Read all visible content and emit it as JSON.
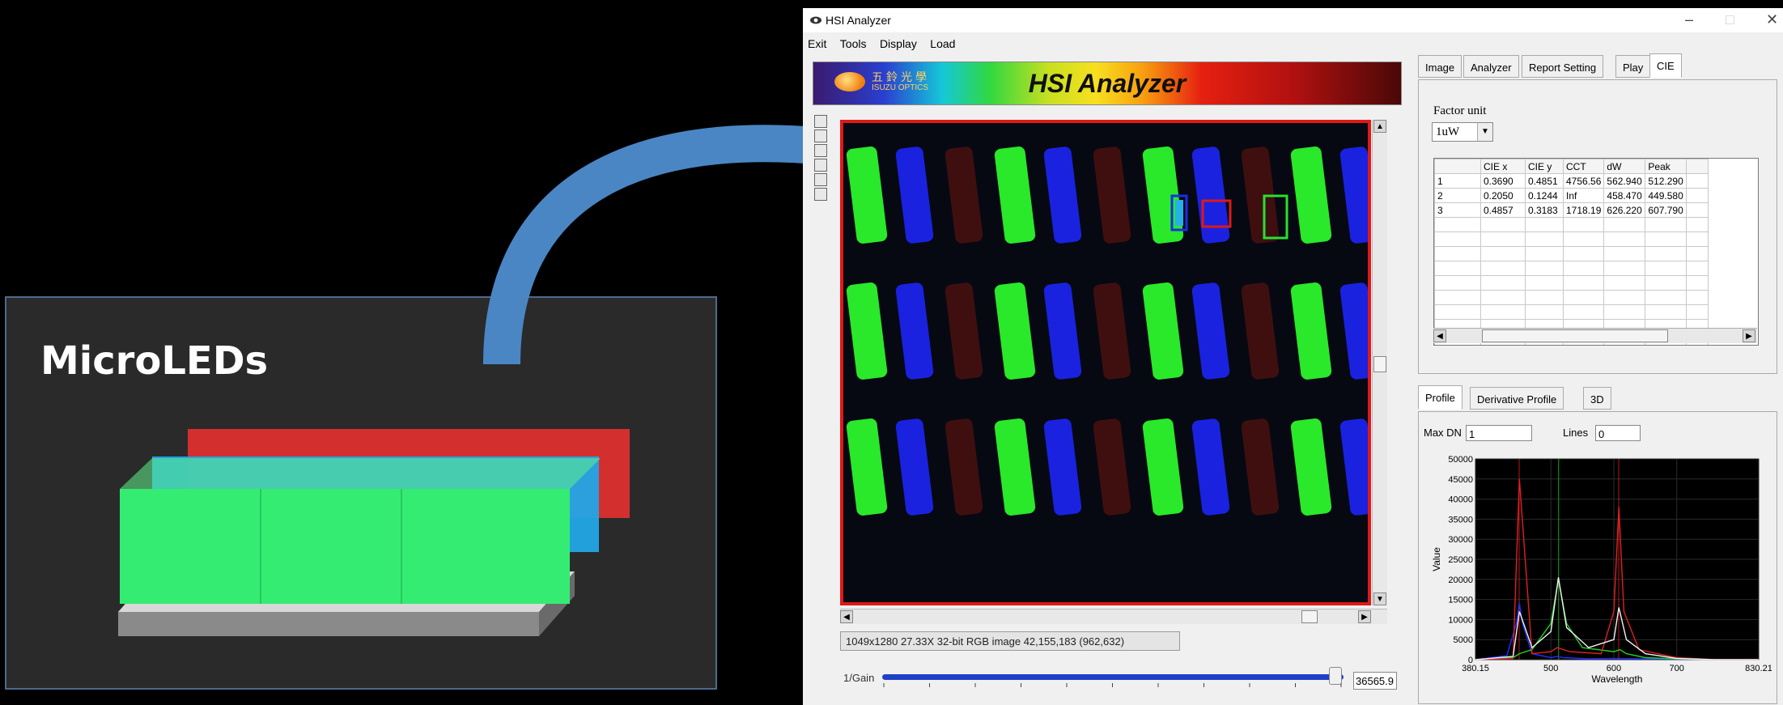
{
  "illustration": {
    "title": "MicroLEDs"
  },
  "window": {
    "title": "HSI Analyzer"
  },
  "menu": [
    "Exit",
    "Tools",
    "Display",
    "Load"
  ],
  "banner": {
    "title": "HSI Analyzer",
    "logo_cn": "五鈴光學",
    "logo_en": "ISUZU OPTICS"
  },
  "status_text": "1049x1280 27.33X 32-bit RGB image 42,155,183   (962,632)",
  "gain": {
    "label": "1/Gain",
    "value": "36565.9",
    "level": 0.98
  },
  "tabs_top": [
    "Image",
    "Analyzer",
    "Report Setting",
    "Play",
    "CIE"
  ],
  "active_tab_top": "CIE",
  "factor": {
    "label": "Factor unit",
    "value": "1uW"
  },
  "cie_table": {
    "headers": [
      "",
      "CIE x",
      "CIE y",
      "CCT",
      "dW",
      "Peak",
      ""
    ],
    "rows": [
      [
        "1",
        "0.3690",
        "0.4851",
        "4756.56",
        "562.940",
        "512.290",
        ""
      ],
      [
        "2",
        "0.2050",
        "0.1244",
        "Inf",
        "458.470",
        "449.580",
        ""
      ],
      [
        "3",
        "0.4857",
        "0.3183",
        "1718.19",
        "626.220",
        "607.790",
        ""
      ]
    ],
    "empty_rows": 9
  },
  "tabs_bottom": [
    "Profile",
    "Derivative Profile",
    "3D"
  ],
  "active_tab_bottom": "Profile",
  "profile": {
    "maxdn_label": "Max DN",
    "maxdn_value": "1",
    "lines_label": "Lines",
    "lines_value": "0"
  },
  "chart_data": {
    "type": "line",
    "xlabel": "Wavelength",
    "ylabel": "Value",
    "xlim": [
      380.15,
      830.21
    ],
    "ylim": [
      0,
      50000
    ],
    "x_ticks": [
      "380.15",
      "500",
      "600",
      "700",
      "830.21"
    ],
    "y_ticks": [
      "0",
      "5000",
      "10000",
      "15000",
      "20000",
      "25000",
      "30000",
      "35000",
      "40000",
      "45000",
      "50000"
    ],
    "series": [
      {
        "color": "#2030ff",
        "x": [
          380,
          430,
          445,
          450,
          455,
          470,
          500,
          510,
          520,
          560,
          600,
          650,
          700,
          760,
          830
        ],
        "y": [
          0,
          1000,
          9000,
          14000,
          9000,
          1500,
          500,
          800,
          500,
          200,
          300,
          200,
          100,
          0,
          0
        ]
      },
      {
        "color": "#20d020",
        "x": [
          380,
          440,
          450,
          470,
          500,
          512,
          525,
          550,
          600,
          610,
          620,
          650,
          700,
          760,
          830
        ],
        "y": [
          0,
          500,
          1500,
          2500,
          9000,
          20000,
          9000,
          3000,
          2000,
          2500,
          1500,
          500,
          200,
          0,
          0
        ]
      },
      {
        "color": "#e02020",
        "x": [
          380,
          440,
          450,
          470,
          500,
          510,
          530,
          580,
          600,
          608,
          616,
          640,
          700,
          760,
          830
        ],
        "y": [
          0,
          300,
          45000,
          1500,
          2000,
          3000,
          2000,
          1500,
          12000,
          38000,
          12000,
          2500,
          500,
          0,
          0
        ]
      },
      {
        "color": "#f0f0f0",
        "x": [
          380,
          440,
          450,
          470,
          500,
          512,
          525,
          560,
          600,
          608,
          620,
          650,
          700,
          760,
          830
        ],
        "y": [
          0,
          800,
          12000,
          3000,
          7000,
          20500,
          8000,
          3000,
          5000,
          13000,
          5000,
          1500,
          300,
          0,
          0
        ]
      }
    ],
    "markers": [
      {
        "x": 449.58,
        "color": "#e02020"
      },
      {
        "x": 512.29,
        "color": "#20d020"
      },
      {
        "x": 607.79,
        "color": "#e02020"
      }
    ]
  }
}
